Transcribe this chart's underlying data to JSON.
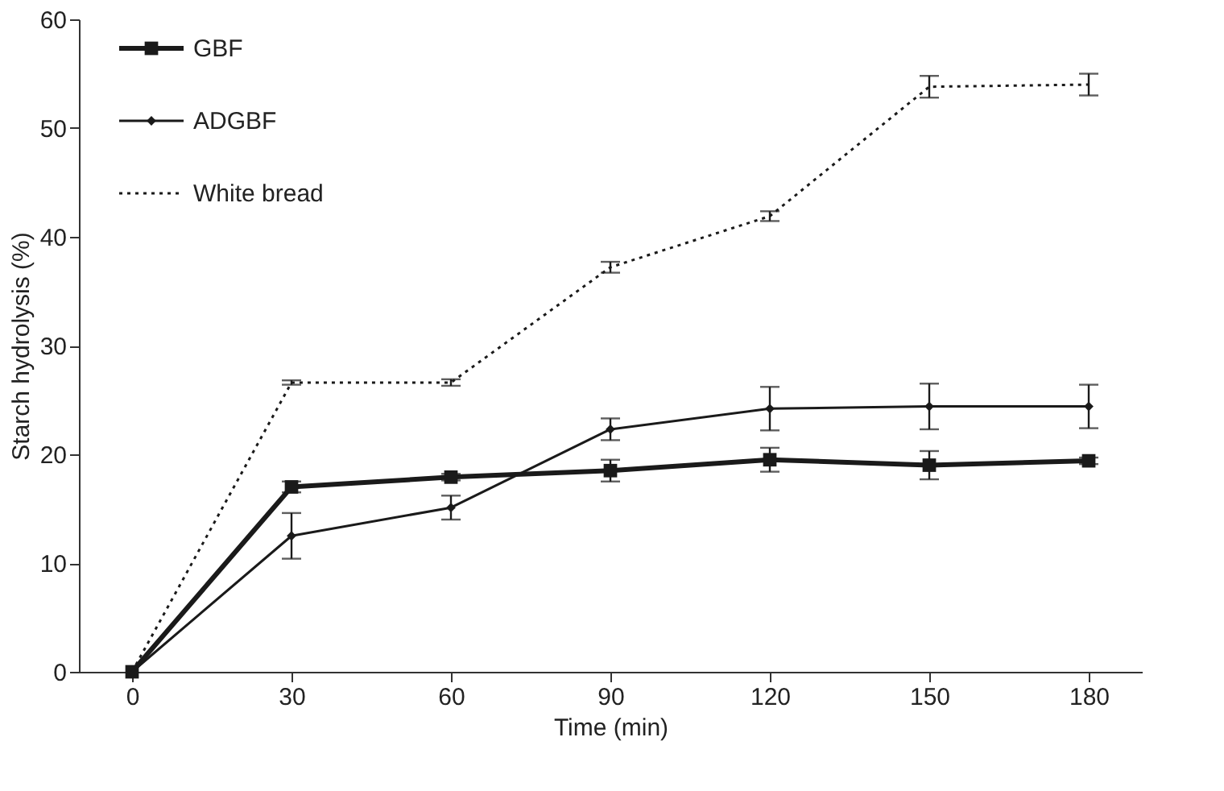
{
  "chart_data": {
    "type": "line",
    "xlabel": "Time (min)",
    "ylabel": "Starch hydrolysis (%)",
    "x": [
      0,
      30,
      60,
      90,
      120,
      150,
      180
    ],
    "xlim": [
      -10,
      190
    ],
    "xticks": [
      0,
      30,
      60,
      90,
      120,
      150,
      180
    ],
    "ylim": [
      0,
      60
    ],
    "yticks": [
      0,
      10,
      20,
      30,
      40,
      50,
      60
    ],
    "grid": false,
    "legend": "top left",
    "series": [
      {
        "name": "GBF",
        "color": "#1a1a1a",
        "marker": "square",
        "line_style": "solid",
        "values": [
          0,
          17.0,
          17.9,
          18.5,
          19.5,
          19.0,
          19.4
        ],
        "errors": [
          null,
          0.5,
          0.3,
          1.0,
          1.1,
          1.3,
          0.3
        ]
      },
      {
        "name": "ADGBF",
        "color": "#1a1a1a",
        "marker": "diamond",
        "line_style": "solid",
        "values": [
          0,
          12.5,
          15.1,
          22.3,
          24.2,
          24.4,
          24.4
        ],
        "errors": [
          null,
          2.1,
          1.1,
          1.0,
          2.0,
          2.1,
          2.0
        ]
      },
      {
        "name": "White bread",
        "color": "#1a1a1a",
        "marker": "none",
        "line_style": "dotted",
        "values": [
          0,
          26.6,
          26.6,
          37.2,
          41.9,
          53.8,
          54.0
        ],
        "errors": [
          null,
          0.2,
          0.3,
          0.5,
          0.45,
          1.0,
          1.0
        ]
      }
    ]
  }
}
